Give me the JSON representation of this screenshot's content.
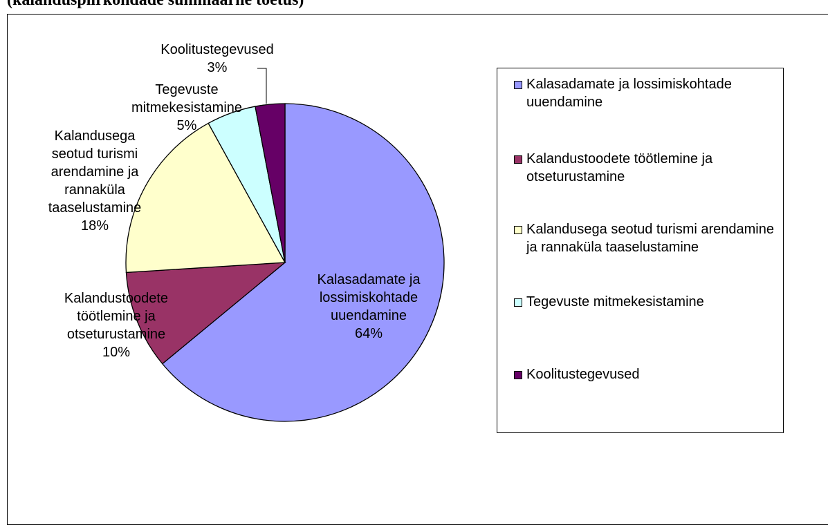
{
  "chart_data": {
    "type": "pie",
    "title": "(kalanduspiirkondade summaarne toetus)",
    "categories": [
      "Kalasadamate ja lossimiskohtade uuendamine",
      "Kalandustoodete töötlemine ja otseturustamine",
      "Kalandusega seotud turismi arendamine ja rannaküla taaselustamine",
      "Tegevuste mitmekesistamine",
      "Koolitustegevused"
    ],
    "values": [
      64,
      10,
      18,
      5,
      3
    ],
    "value_labels": [
      "64%",
      "10%",
      "18%",
      "5%",
      "3%"
    ],
    "colors": [
      "#9999ff",
      "#993366",
      "#ffffcc",
      "#ccffff",
      "#660066"
    ],
    "legend": "right"
  }
}
